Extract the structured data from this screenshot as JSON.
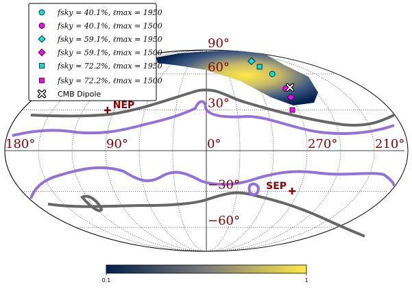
{
  "chart_data": {
    "type": "mollweide",
    "series": [
      {
        "name": "fsky = 40.1%, ℓmax = 1950",
        "color": "#00e6e6",
        "marker": "circle",
        "lon": [
          269
        ],
        "lat": [
          60
        ]
      },
      {
        "name": "fsky = 40.1%, ℓmax = 1500",
        "color": "#ff00ff",
        "marker": "circle",
        "lon": [
          270
        ],
        "lat": [
          47
        ]
      },
      {
        "name": "fsky = 59.1%, ℓmax = 1950",
        "color": "#00e6e6",
        "marker": "diamond",
        "lon": [
          272
        ],
        "lat": [
          73
        ]
      },
      {
        "name": "fsky = 59.1%, ℓmax = 1500",
        "color": "#ff00ff",
        "marker": "diamond",
        "lon": [
          271
        ],
        "lat": [
          40
        ]
      },
      {
        "name": "fsky = 72.2%, ℓmax = 1950",
        "color": "#00e6e6",
        "marker": "square",
        "lon": [
          274
        ],
        "lat": [
          67
        ]
      },
      {
        "name": "fsky = 72.2%, ℓmax = 1500",
        "color": "#ff00ff",
        "marker": "square",
        "lon": [
          276
        ],
        "lat": [
          30
        ]
      },
      {
        "name": "CMB Dipole",
        "color": "#ffffff",
        "marker": "x",
        "lon": [
          264
        ],
        "lat": [
          48
        ]
      }
    ],
    "poles": [
      {
        "label": "NEP",
        "lon": 96.4,
        "lat": 29.8
      },
      {
        "label": "SEP",
        "lon": 276.4,
        "lat": -29.8
      }
    ],
    "xticks": [
      {
        "value": 180,
        "label": "180°"
      },
      {
        "value": 90,
        "label": "90°"
      },
      {
        "value": 0,
        "label": "0°"
      },
      {
        "value": 270,
        "label": "270°"
      },
      {
        "value": 210,
        "label": "210°"
      }
    ],
    "yticks": [
      {
        "value": 90,
        "label": "90°"
      },
      {
        "value": 60,
        "label": "60°"
      },
      {
        "value": 30,
        "label": "30°"
      },
      {
        "value": -30,
        "label": "−30°"
      },
      {
        "value": -60,
        "label": "−60°"
      }
    ],
    "colorbar": {
      "lim": [
        0.1,
        1
      ],
      "ticks": [
        0.1,
        1
      ],
      "scale": "log"
    },
    "grid": true
  }
}
